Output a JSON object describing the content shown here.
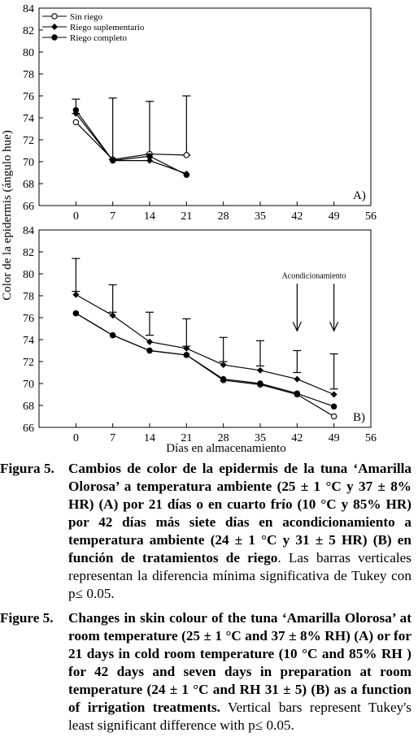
{
  "yaxis_label": "Color de la epidermis (ángulo hue)",
  "xaxis_label": "Días en almacenamiento",
  "legend": [
    {
      "label": "Sin riego",
      "marker": "open-circle"
    },
    {
      "label": "Riego suplementario",
      "marker": "diamond"
    },
    {
      "label": "Riego completo",
      "marker": "filled-circle"
    }
  ],
  "acond_label": "Acondicionamiento",
  "chart_data": [
    {
      "type": "line",
      "panel": "A)",
      "x_ticks": [
        0,
        7,
        14,
        21,
        28,
        35,
        42,
        49,
        56
      ],
      "y_ticks": [
        66,
        68,
        70,
        72,
        74,
        76,
        78,
        80,
        82,
        84
      ],
      "xlim": [
        -7,
        56
      ],
      "ylim": [
        66,
        84
      ],
      "series": [
        {
          "name": "Sin riego",
          "x": [
            0,
            7,
            14,
            21
          ],
          "y": [
            73.6,
            70.2,
            70.7,
            70.6
          ]
        },
        {
          "name": "Riego suplementario",
          "x": [
            0,
            7,
            14,
            21
          ],
          "y": [
            74.4,
            70.1,
            70.1,
            68.9
          ]
        },
        {
          "name": "Riego completo",
          "x": [
            0,
            7,
            14,
            21
          ],
          "y": [
            74.7,
            70.1,
            70.5,
            68.8
          ]
        }
      ],
      "error_bars": [
        {
          "x": 0,
          "low": 74.4,
          "high": 75.7
        },
        {
          "x": 7,
          "low": 70.2,
          "high": 75.8
        },
        {
          "x": 14,
          "low": 70.7,
          "high": 75.5
        },
        {
          "x": 21,
          "low": 70.6,
          "high": 76.0
        }
      ]
    },
    {
      "type": "line",
      "panel": "B)",
      "x_ticks": [
        0,
        7,
        14,
        21,
        28,
        35,
        42,
        49,
        56
      ],
      "y_ticks": [
        66,
        68,
        70,
        72,
        74,
        76,
        78,
        80,
        82,
        84
      ],
      "xlim": [
        -7,
        56
      ],
      "ylim": [
        66,
        84
      ],
      "series": [
        {
          "name": "Sin riego",
          "x": [
            0,
            7,
            14,
            21,
            28,
            35,
            42,
            49
          ],
          "y": [
            76.4,
            74.4,
            73.0,
            72.6,
            70.3,
            69.9,
            69.0,
            67.0
          ]
        },
        {
          "name": "Riego suplementario",
          "x": [
            0,
            7,
            14,
            21,
            28,
            35,
            42,
            49
          ],
          "y": [
            78.1,
            76.2,
            73.8,
            73.2,
            71.7,
            71.2,
            70.4,
            69.0
          ]
        },
        {
          "name": "Riego completo",
          "x": [
            0,
            7,
            14,
            21,
            28,
            35,
            42,
            49
          ],
          "y": [
            76.4,
            74.4,
            73.0,
            72.6,
            70.4,
            70.0,
            69.1,
            67.9
          ]
        }
      ],
      "error_bars": [
        {
          "x": 0,
          "low": 78.4,
          "high": 81.4
        },
        {
          "x": 7,
          "low": 76.5,
          "high": 79.0
        },
        {
          "x": 14,
          "low": 74.4,
          "high": 76.5
        },
        {
          "x": 21,
          "low": 73.4,
          "high": 75.9
        },
        {
          "x": 28,
          "low": 72.0,
          "high": 74.2
        },
        {
          "x": 35,
          "low": 71.6,
          "high": 73.9
        },
        {
          "x": 42,
          "low": 71.0,
          "high": 73.0
        },
        {
          "x": 49,
          "low": 69.5,
          "high": 72.7
        }
      ],
      "arrows_at_x": [
        42,
        49
      ]
    }
  ],
  "caption_es": {
    "label": "Figura 5.",
    "bold": "Cambios de color de la epidermis de la tuna ‘Amarilla Olorosa’ a temperatura ambiente (25 ± 1 °C y 37 ± 8% HR) (A) por 21 días o en cuarto frío (10 °C y 85% HR) por 42 días más siete días en acondicionamiento a temperatura ambiente (24 ± 1 °C y 31 ± 5 HR) (B) en función de tratamientos de riego",
    "rest": ". Las barras verticales representan la diferencia mínima significativa de Tukey con p≤ 0.05."
  },
  "caption_en": {
    "label": "Figure 5.",
    "bold": "Changes in skin colour of the tuna ‘Amarilla Olorosa’ at room temperature (25 ± 1 °C and 37 ± 8% RH) (A) or for 21 days in cold room temperature (10 °C and 85% RH ) for 42 days and seven days in preparation at room temperature (24 ± 1 °C and RH 31 ± 5) (B) as a function of irrigation treatments.",
    "rest": " Vertical bars represent Tukey's least significant difference with p≤ 0.05."
  }
}
